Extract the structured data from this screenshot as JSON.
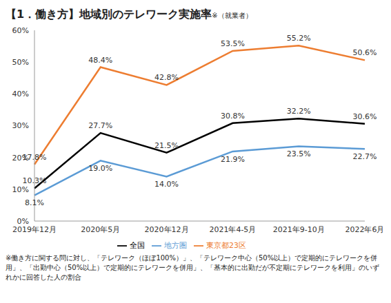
{
  "chart_data": {
    "type": "line",
    "title": "【1．働き方】地域別のテレワーク実施率",
    "subtitle": "※（就業者）",
    "categories": [
      "2019年12月",
      "2020年5月",
      "2020年12月",
      "2021年4-5月",
      "2021年9-10月",
      "2022年6月"
    ],
    "series": [
      {
        "name": "全国",
        "color": "#000000",
        "values": [
          10.3,
          27.7,
          21.5,
          30.8,
          32.2,
          30.6
        ],
        "value_labels": [
          "10.3%",
          "27.7%",
          "21.5%",
          "30.8%",
          "32.2%",
          "30.6%"
        ]
      },
      {
        "name": "東京都23区",
        "color": "#ED7D31",
        "values": [
          17.8,
          48.4,
          42.8,
          53.5,
          55.2,
          50.6
        ],
        "value_labels": [
          "17.8%",
          "48.4%",
          "42.8%",
          "53.5%",
          "55.2%",
          "50.6%"
        ]
      },
      {
        "name": "地方圏",
        "color": "#5B9BD5",
        "values": [
          8.1,
          19.0,
          14.0,
          21.9,
          23.5,
          22.7
        ],
        "value_labels": [
          "8.1%",
          "19.0%",
          "14.0%",
          "21.9%",
          "23.5%",
          "22.7%"
        ]
      }
    ],
    "ylim": [
      0,
      60
    ],
    "yticks": [
      {
        "value": 0,
        "label": "0%"
      },
      {
        "value": 10,
        "label": "10%"
      },
      {
        "value": 20,
        "label": "20%"
      },
      {
        "value": 30,
        "label": "30%"
      },
      {
        "value": 40,
        "label": "40%"
      },
      {
        "value": 50,
        "label": "50%"
      },
      {
        "value": 60,
        "label": "60%"
      }
    ],
    "grid": false,
    "legend": "bottom",
    "data_labels": true,
    "marker": "none",
    "annotations": [
      "※働き方に関する問に対し、「テレワーク（ほぼ100%）」、「テレワーク中心（50%以上）で定期的にテレワークを併用」、「出勤中心（50%以上）で定期的にテレワークを併用」、「基本的に出勤だが不定期にテレワークを利用」のいずれかに回答した人の割合"
    ]
  }
}
